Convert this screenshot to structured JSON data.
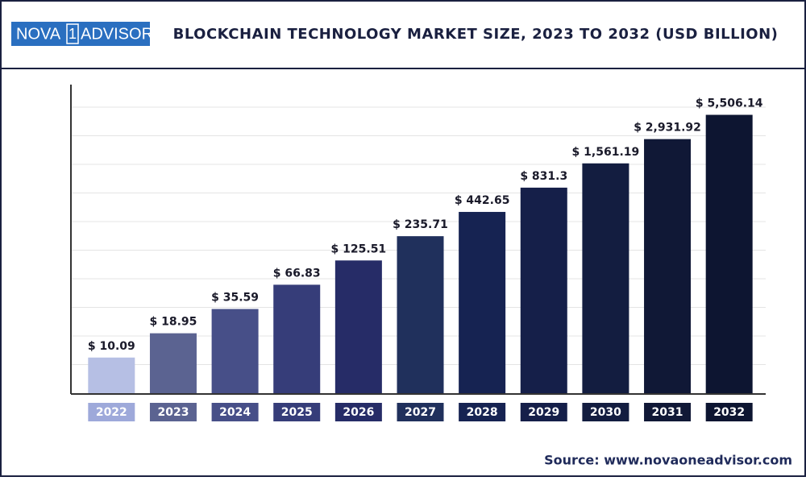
{
  "logo": [
    "NOVA",
    "1",
    "ADVISOR"
  ],
  "source": "Source: www.novaoneadvisor.com",
  "chart_data": {
    "type": "bar",
    "title": "BLOCKCHAIN TECHNOLOGY MARKET SIZE, 2023 TO 2032  (USD BILLION)",
    "categories": [
      "2022",
      "2023",
      "2024",
      "2025",
      "2026",
      "2027",
      "2028",
      "2029",
      "2030",
      "2031",
      "2032"
    ],
    "values": [
      10.09,
      18.95,
      35.59,
      66.83,
      125.51,
      235.71,
      442.65,
      831.3,
      1561.19,
      2931.92,
      5506.14
    ],
    "value_labels": [
      "$ 10.09",
      "$ 18.95",
      "$ 35.59",
      "$ 66.83",
      "$ 125.51",
      "$ 235.71",
      "$ 442.65",
      "$ 831.3",
      "$ 1,561.19",
      "$ 2,931.92",
      "$ 5,506.14"
    ],
    "colors": [
      "#b6bfe4",
      "#5b6391",
      "#474f88",
      "#363d79",
      "#262c67",
      "#20305c",
      "#162352",
      "#151f49",
      "#131d40",
      "#101836",
      "#0d1531"
    ],
    "ylim": [
      4,
      10000
    ],
    "log_scale": true,
    "grid": true
  }
}
